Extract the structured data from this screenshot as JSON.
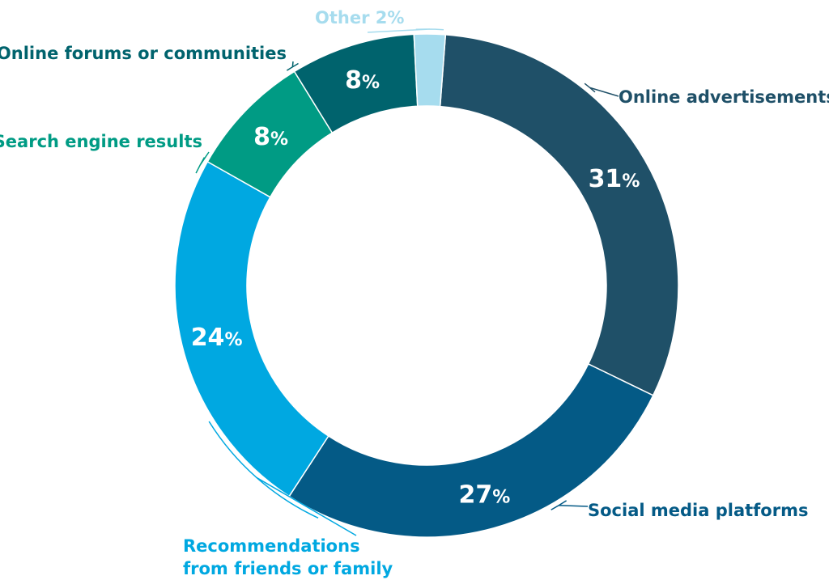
{
  "chart_data": {
    "type": "pie",
    "title": "",
    "donut": true,
    "legend": "none",
    "slices": [
      {
        "label": "Online advertisements",
        "value": 31,
        "display": "31",
        "unit": "%",
        "color": "#1f5068"
      },
      {
        "label": "Social media platforms",
        "value": 27,
        "display": "27",
        "unit": "%",
        "color": "#045a86"
      },
      {
        "label": "Recommendations from friends or family",
        "label_lines": [
          "Recommendations",
          "from friends or family"
        ],
        "value": 24,
        "display": "24",
        "unit": "%",
        "color": "#00a8e1"
      },
      {
        "label": "Search engine results",
        "value": 8,
        "display": "8",
        "unit": "%",
        "color": "#009b84"
      },
      {
        "label": "Online forums or communities",
        "value": 8,
        "display": "8",
        "unit": "%",
        "color": "#00636d"
      },
      {
        "label": "Other",
        "value": 2,
        "display": "Other 2%",
        "unit": "%",
        "color": "#a6dcee"
      }
    ]
  }
}
